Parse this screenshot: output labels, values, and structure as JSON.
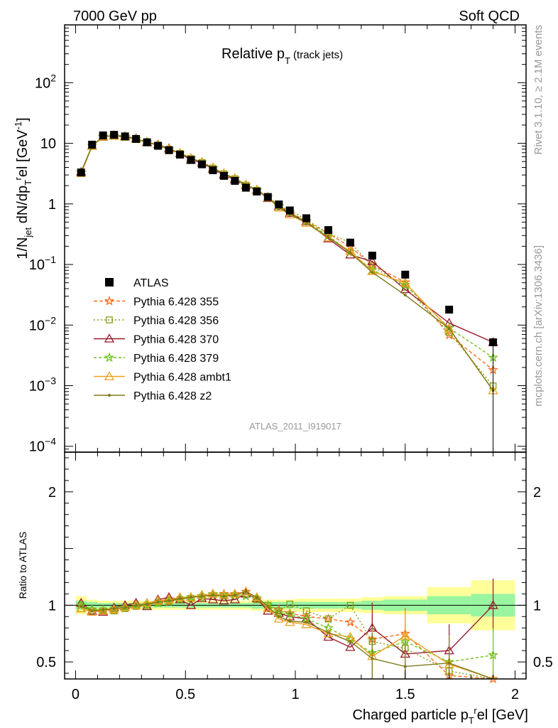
{
  "header": {
    "left": "7000 GeV pp",
    "right": "Soft QCD"
  },
  "side": {
    "rivet": "Rivet 3.1.10, ≥ 2.1M events",
    "mcplots": "mcplots.cern.ch [arXiv:1306.3436]"
  },
  "chart_data": {
    "type": "scatter",
    "title": "Relative p_T (track jets)",
    "analysis_label": "ATLAS_2011_I919017",
    "xlabel": "Charged particle p_T^rel [GeV]",
    "ylabel_main": "1/N_jet dN/dp_T^rel [GeV^-1]",
    "ylabel_ratio": "Ratio to ATLAS",
    "xlim": [
      -0.05,
      2.05
    ],
    "ylim_main": [
      8e-05,
      900
    ],
    "ylim_ratio": [
      0.35,
      2.35
    ],
    "log_y_main": true,
    "x_ticks": [
      "0",
      "0.5",
      "1",
      "1.5",
      "2"
    ],
    "y_ticks_main": [
      "10^-4",
      "10^-3",
      "10^-2",
      "10^-1",
      "1",
      "10",
      "10^2"
    ],
    "y_ticks_ratio": [
      "0.5",
      "1",
      "2"
    ],
    "x": [
      0.025,
      0.075,
      0.125,
      0.175,
      0.225,
      0.275,
      0.325,
      0.375,
      0.425,
      0.475,
      0.525,
      0.575,
      0.625,
      0.675,
      0.725,
      0.775,
      0.825,
      0.875,
      0.925,
      0.975,
      1.05,
      1.15,
      1.25,
      1.35,
      1.5,
      1.7,
      1.9
    ],
    "band_edges": [
      0,
      0.05,
      0.1,
      0.15,
      0.2,
      0.25,
      0.3,
      0.35,
      0.4,
      0.45,
      0.5,
      0.55,
      0.6,
      0.65,
      0.7,
      0.75,
      0.8,
      0.85,
      0.9,
      0.95,
      1.0,
      1.1,
      1.2,
      1.3,
      1.4,
      1.6,
      1.8,
      2.0
    ],
    "band_inner": [
      0.04,
      0.03,
      0.02,
      0.02,
      0.02,
      0.02,
      0.02,
      0.02,
      0.02,
      0.02,
      0.02,
      0.02,
      0.02,
      0.02,
      0.02,
      0.02,
      0.03,
      0.03,
      0.03,
      0.03,
      0.03,
      0.03,
      0.03,
      0.04,
      0.05,
      0.08,
      0.1,
      0.2
    ],
    "band_outer": [
      0.08,
      0.05,
      0.04,
      0.04,
      0.04,
      0.04,
      0.04,
      0.04,
      0.04,
      0.04,
      0.04,
      0.04,
      0.04,
      0.04,
      0.04,
      0.04,
      0.05,
      0.05,
      0.05,
      0.05,
      0.06,
      0.06,
      0.06,
      0.07,
      0.08,
      0.16,
      0.22,
      0.43
    ],
    "data": {
      "name": "ATLAS",
      "values": [
        3.3,
        9.5,
        13.5,
        13.8,
        13.0,
        11.8,
        10.4,
        9.1,
        7.7,
        6.5,
        5.3,
        4.5,
        3.6,
        2.9,
        2.4,
        1.85,
        1.6,
        1.3,
        0.98,
        0.78,
        0.58,
        0.37,
        0.23,
        0.14,
        0.068,
        0.018,
        0.0052
      ]
    },
    "series": [
      {
        "name": "Pythia 6.428 355",
        "color": "#ff6e1c",
        "dash": "5,3",
        "marker": "star",
        "ratio": [
          1.0,
          0.96,
          0.95,
          0.96,
          0.98,
          1.0,
          1.0,
          1.02,
          1.03,
          1.05,
          1.07,
          1.08,
          1.09,
          1.1,
          1.1,
          1.12,
          1.05,
          1.0,
          0.96,
          0.93,
          0.9,
          0.88,
          0.85,
          0.7,
          0.75,
          0.38,
          0.35
        ]
      },
      {
        "name": "Pythia 6.428 356",
        "color": "#7f9f10",
        "dash": "2,3",
        "marker": "square",
        "ratio": [
          0.97,
          0.95,
          0.95,
          0.95,
          0.97,
          0.99,
          1.0,
          1.02,
          1.03,
          1.05,
          1.06,
          1.07,
          1.08,
          1.08,
          1.08,
          1.1,
          1.05,
          1.0,
          0.95,
          1.01,
          0.95,
          0.88,
          1.0,
          0.68,
          0.62,
          0.42,
          0.19
        ]
      },
      {
        "name": "Pythia 6.428 370",
        "color": "#981b2e",
        "dash": "",
        "marker": "triangle",
        "ratio": [
          1.02,
          0.95,
          0.94,
          0.98,
          1.0,
          1.02,
          0.99,
          1.05,
          1.07,
          1.05,
          1.0,
          1.06,
          1.05,
          1.04,
          1.05,
          1.1,
          1.06,
          0.95,
          0.93,
          0.9,
          0.88,
          0.72,
          0.63,
          0.8,
          0.57,
          0.6,
          1.0
        ]
      },
      {
        "name": "Pythia 6.428 379",
        "color": "#6ec21a",
        "dash": "4,3",
        "marker": "star",
        "ratio": [
          1.0,
          0.96,
          0.96,
          0.97,
          0.98,
          1.0,
          1.0,
          1.02,
          1.04,
          1.05,
          1.07,
          1.08,
          1.1,
          1.09,
          1.09,
          1.08,
          1.06,
          1.0,
          0.93,
          0.92,
          0.88,
          0.8,
          0.7,
          0.58,
          0.68,
          0.5,
          0.56
        ]
      },
      {
        "name": "Pythia 6.428 ambt1",
        "color": "#f0a020",
        "dash": "",
        "marker": "triangle",
        "ratio": [
          0.97,
          0.94,
          0.95,
          0.96,
          0.98,
          1.0,
          1.02,
          1.04,
          1.05,
          1.07,
          1.07,
          1.09,
          1.1,
          1.09,
          1.1,
          1.12,
          1.07,
          0.97,
          0.88,
          0.85,
          0.83,
          0.75,
          0.72,
          0.55,
          0.73,
          0.48,
          0.16
        ]
      },
      {
        "name": "Pythia 6.428 z2",
        "color": "#7e7a1a",
        "dash": "",
        "marker": "dot",
        "ratio": [
          0.99,
          0.95,
          0.96,
          0.97,
          0.98,
          1.0,
          1.01,
          1.03,
          1.04,
          1.06,
          1.07,
          1.08,
          1.09,
          1.08,
          1.09,
          1.12,
          1.07,
          0.99,
          0.9,
          0.86,
          0.85,
          0.76,
          0.68,
          0.53,
          0.46,
          0.49,
          0.16
        ]
      }
    ]
  }
}
